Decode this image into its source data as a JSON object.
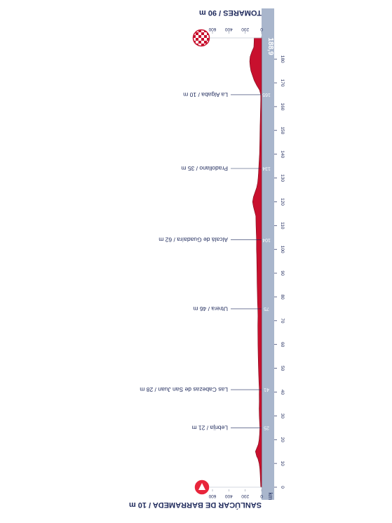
{
  "chart_data": {
    "type": "area",
    "title": "",
    "start_label": "SANLÚCAR DE BARRAMEDA / 10 m",
    "end_label": "TOMARES / 90 m",
    "axis_unit_label": "km",
    "distance_ticks": [
      0,
      10,
      20,
      30,
      40,
      50,
      60,
      70,
      80,
      90,
      100,
      110,
      120,
      130,
      140,
      150,
      160,
      170,
      180
    ],
    "distance_range": [
      0,
      188.9
    ],
    "altitude_ticks": [
      0,
      200,
      400,
      600
    ],
    "altitude_range": [
      0,
      600
    ],
    "total_distance_label": "188,9",
    "waypoints": [
      {
        "km": 25,
        "km_label": "25",
        "label": "Lebrija / 21 m"
      },
      {
        "km": 41,
        "km_label": "41",
        "label": "Las Cabezas de San Juan / 28 m"
      },
      {
        "km": 75,
        "km_label": "75",
        "label": "Utrera / 46 m"
      },
      {
        "km": 104,
        "km_label": "104",
        "label": "Alcalá de Guadaíra / 62 m"
      },
      {
        "km": 134,
        "km_label": "134",
        "label": "Pradollano / 35 m"
      },
      {
        "km": 165,
        "km_label": "165",
        "label": "La Algaba / 10 m"
      }
    ],
    "profile": {
      "x": [
        0,
        3,
        6,
        8,
        10,
        12,
        13,
        15,
        18,
        20,
        22,
        25,
        27,
        30,
        33,
        36,
        39,
        41,
        44,
        47,
        50,
        53,
        56,
        60,
        64,
        68,
        72,
        75,
        78,
        82,
        86,
        90,
        94,
        98,
        100,
        102,
        104,
        106,
        110,
        114,
        116,
        118,
        120,
        122,
        124,
        126,
        128,
        130,
        132,
        134,
        137,
        140,
        144,
        148,
        152,
        156,
        160,
        163,
        165,
        167,
        169,
        171,
        173,
        175,
        177,
        179,
        181,
        183,
        185,
        187,
        188.9
      ],
      "y": [
        10,
        14,
        18,
        22,
        30,
        45,
        60,
        75,
        40,
        30,
        25,
        21,
        24,
        28,
        30,
        28,
        29,
        28,
        32,
        35,
        38,
        40,
        42,
        44,
        45,
        46,
        44,
        46,
        50,
        52,
        55,
        56,
        58,
        60,
        62,
        62,
        62,
        64,
        68,
        70,
        85,
        100,
        110,
        100,
        80,
        60,
        48,
        42,
        38,
        35,
        30,
        25,
        22,
        20,
        18,
        15,
        12,
        10,
        10,
        25,
        60,
        90,
        110,
        130,
        140,
        145,
        140,
        120,
        95,
        92,
        90
      ]
    }
  }
}
